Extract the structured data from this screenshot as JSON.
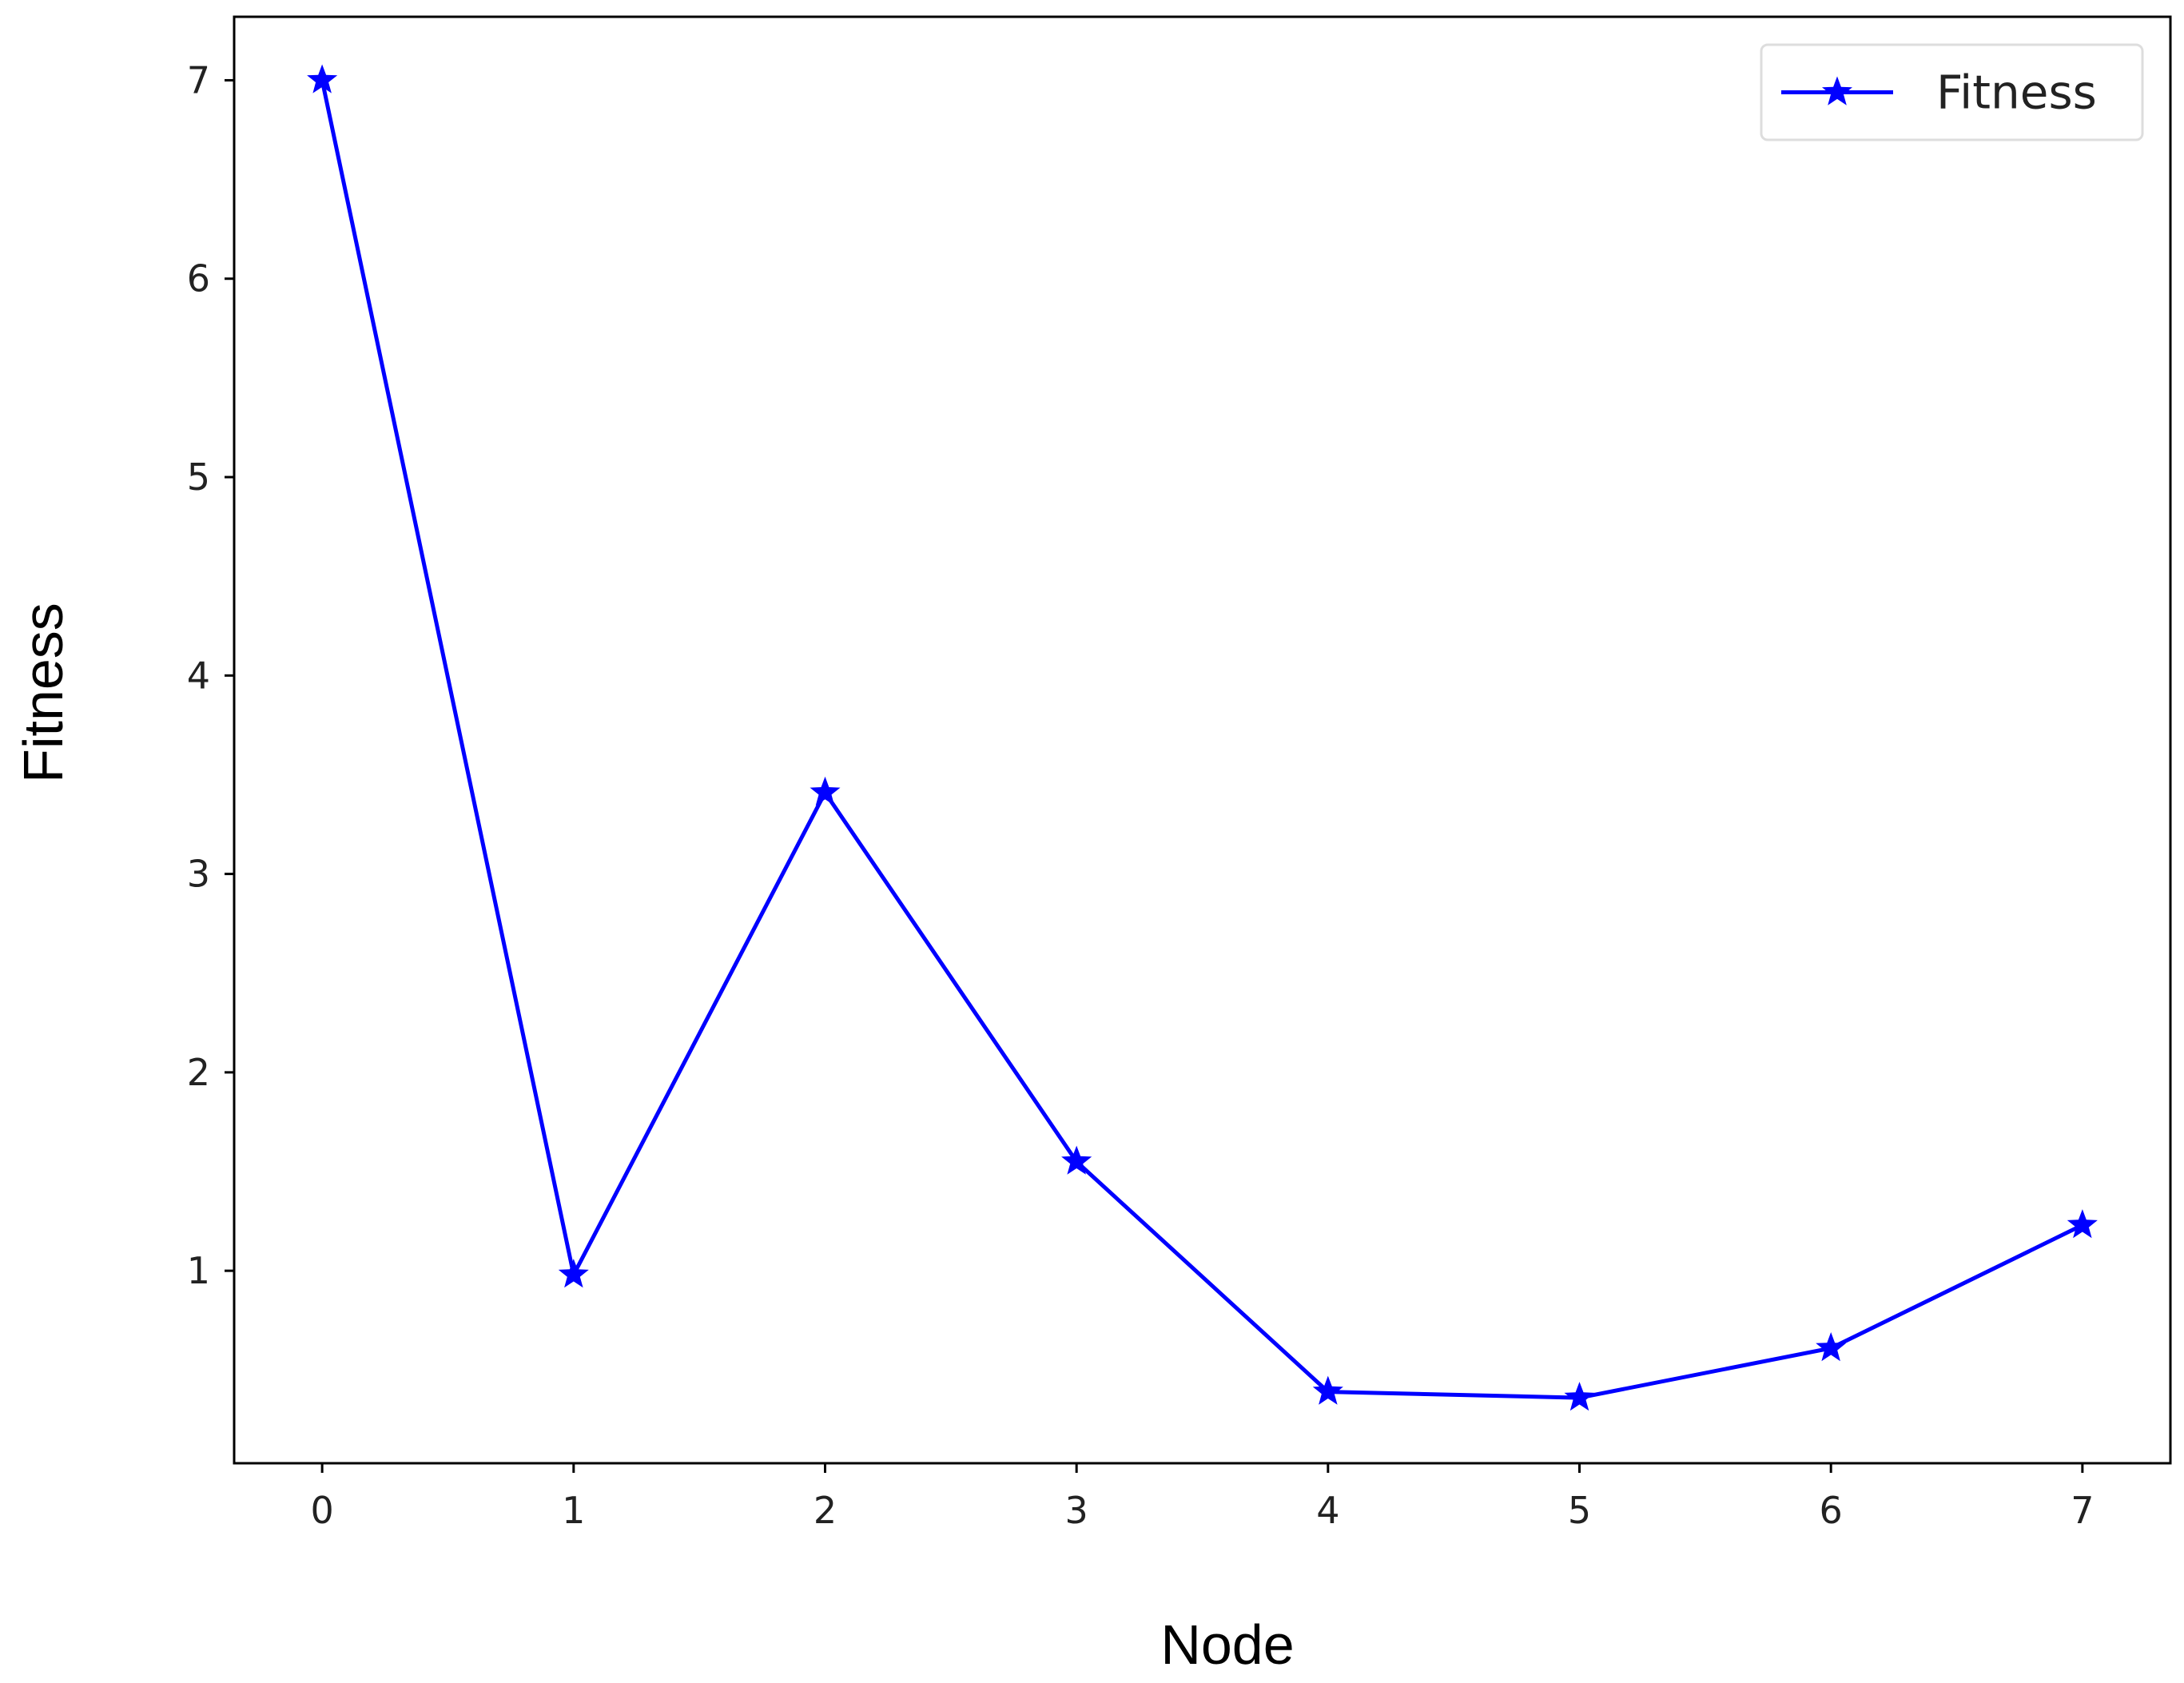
{
  "chart_data": {
    "type": "line",
    "x_label": "Node",
    "y_label": "Fitness",
    "x": [
      0,
      1,
      2,
      3,
      4,
      5,
      6,
      7
    ],
    "series": [
      {
        "name": "Fitness",
        "color": "#0000ff",
        "marker": "star",
        "values": [
          7,
          0.98,
          3.41,
          1.55,
          0.39,
          0.36,
          0.61,
          1.23
        ]
      }
    ],
    "xlim": [
      -0.35,
      7.35
    ],
    "ylim": [
      0.03,
      7.32
    ],
    "xticks": [
      0,
      1,
      2,
      3,
      4,
      5,
      6,
      7
    ],
    "yticks": [
      1,
      2,
      3,
      4,
      5,
      6,
      7
    ],
    "grid": false,
    "legend": "upper right"
  }
}
